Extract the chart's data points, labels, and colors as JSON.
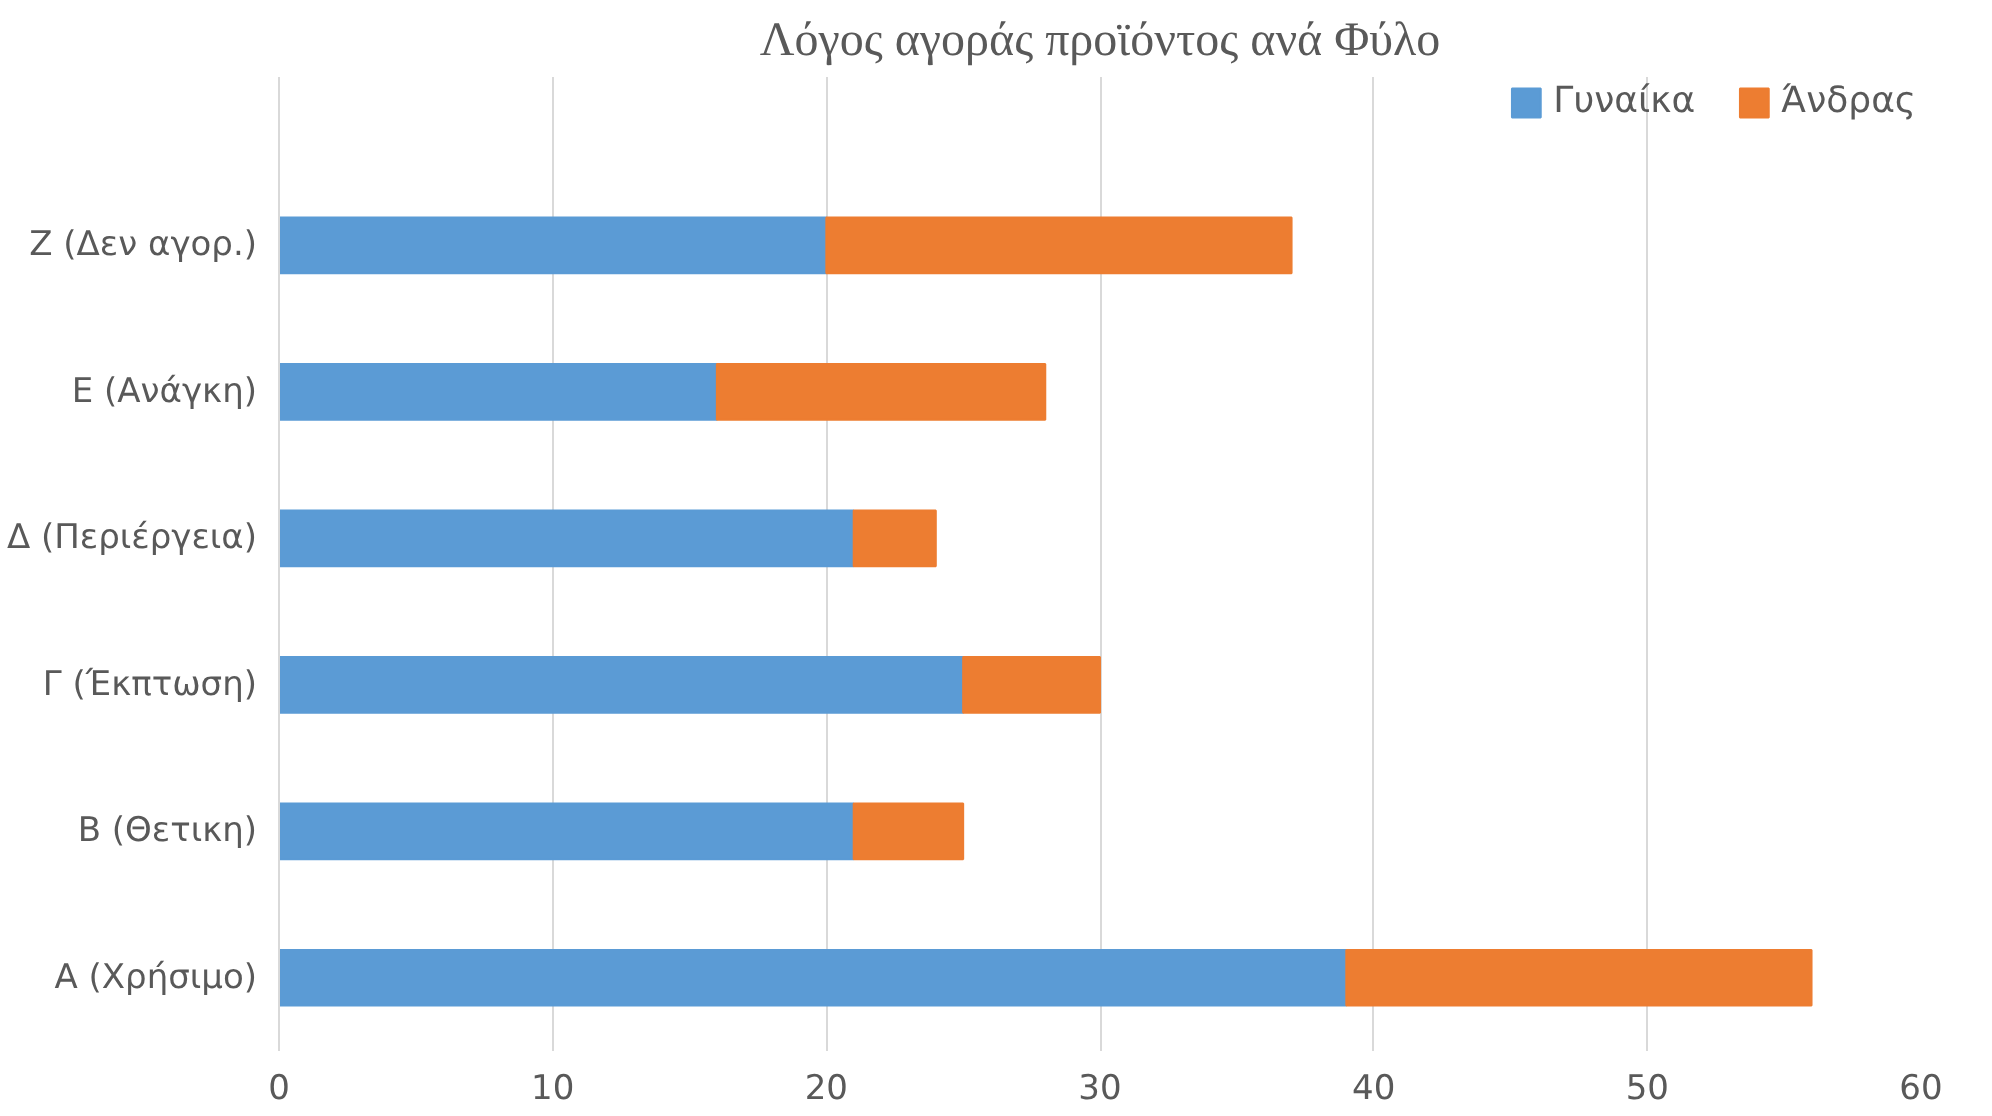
{
  "chart_data": {
    "type": "bar",
    "orientation": "horizontal",
    "stacked": true,
    "title": "Λόγος αγοράς προϊόντος ανά Φύλο",
    "categories": [
      "Ζ (Δεν αγορ.)",
      "Ε (Ανάγκη)",
      "Δ (Περιέργεια)",
      "Γ (Έκπτωση)",
      "Β (Θετικη)",
      "Α (Χρήσιμο)"
    ],
    "series": [
      {
        "name": "Γυναίκα",
        "color": "#5b9bd5",
        "values": [
          20,
          16,
          21,
          25,
          21,
          39
        ]
      },
      {
        "name": "Άνδρας",
        "color": "#ed7d31",
        "values": [
          17,
          12,
          3,
          5,
          4,
          17
        ]
      }
    ],
    "xlim": [
      0,
      60
    ],
    "xticks": [
      0,
      10,
      20,
      30,
      40,
      50,
      60
    ],
    "grid": "x",
    "legend": "top right"
  }
}
